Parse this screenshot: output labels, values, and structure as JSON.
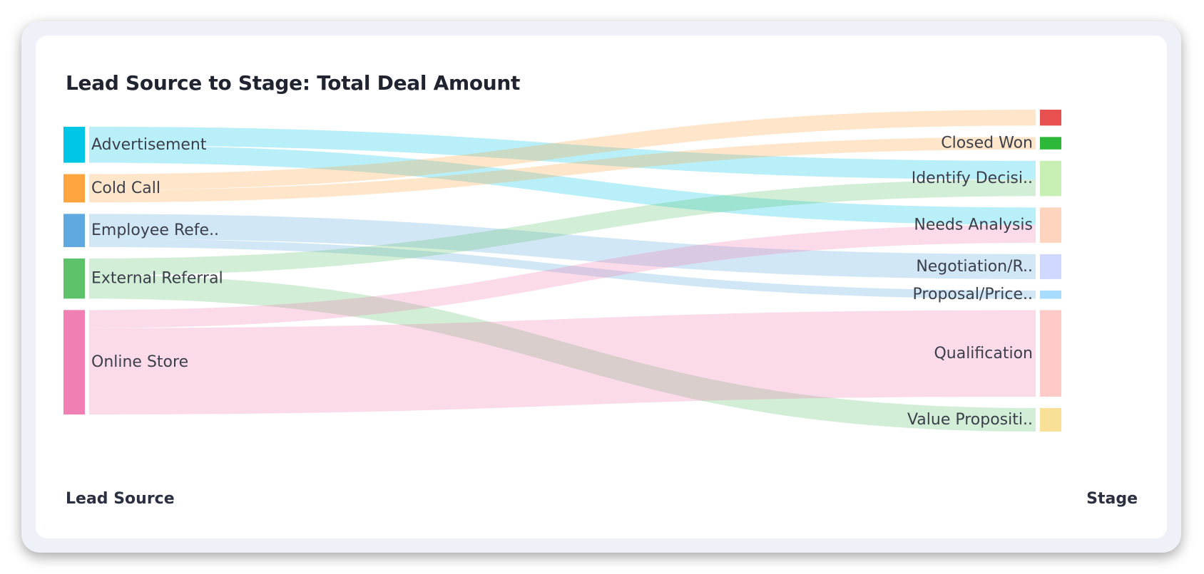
{
  "chart_data": {
    "type": "sankey",
    "title": "Lead Source to Stage: Total Deal Amount",
    "source_axis_label": "Lead Source",
    "target_axis_label": "Stage",
    "sources": [
      {
        "label": "Advertisement",
        "color": "#00c6e6"
      },
      {
        "label": "Cold Call",
        "color": "#ffa53f"
      },
      {
        "label": "Employee Refe..",
        "color": "#5fa8e0"
      },
      {
        "label": "External Referral",
        "color": "#5ec26a"
      },
      {
        "label": "Online Store",
        "color": "#f07fb3"
      }
    ],
    "targets": [
      {
        "label": "",
        "color": "#e85050"
      },
      {
        "label": "Closed Won",
        "color": "#2eb83a"
      },
      {
        "label": "Identify Decisi..",
        "color": "#c8f0b4"
      },
      {
        "label": "Needs Analysis",
        "color": "#ffd4bf"
      },
      {
        "label": "Negotiation/R..",
        "color": "#d0d8ff"
      },
      {
        "label": "Proposal/Price..",
        "color": "#a8dcff"
      },
      {
        "label": "Qualification",
        "color": "#ffcac8"
      },
      {
        "label": "Value Propositi..",
        "color": "#f8e096"
      }
    ],
    "links": [
      {
        "source": 0,
        "target": 2,
        "value": 27
      },
      {
        "source": 0,
        "target": 3,
        "value": 25
      },
      {
        "source": 1,
        "target": 0,
        "value": 23
      },
      {
        "source": 1,
        "target": 1,
        "value": 18
      },
      {
        "source": 2,
        "target": 4,
        "value": 36
      },
      {
        "source": 2,
        "target": 5,
        "value": 12
      },
      {
        "source": 3,
        "target": 2,
        "value": 24
      },
      {
        "source": 3,
        "target": 7,
        "value": 34
      },
      {
        "source": 4,
        "target": 3,
        "value": 26
      },
      {
        "source": 4,
        "target": 6,
        "value": 125
      }
    ]
  }
}
